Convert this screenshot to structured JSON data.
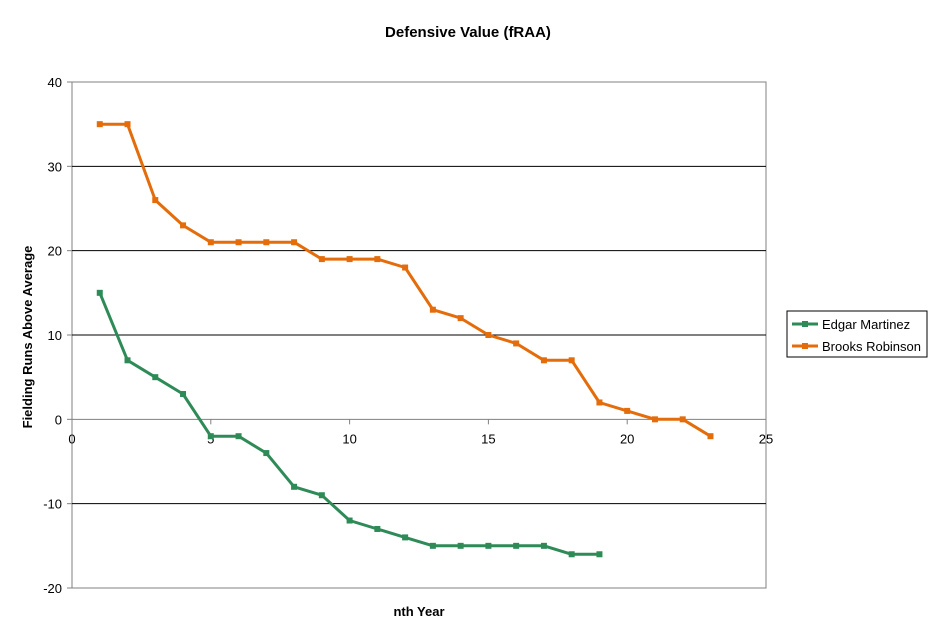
{
  "chart_data": {
    "type": "line",
    "title": "Defensive Value (fRAA)",
    "xlabel": "nth Year",
    "ylabel": "Fielding Runs Above Average",
    "xlim": [
      0,
      25
    ],
    "ylim": [
      -20,
      40
    ],
    "x_ticks": [
      0,
      5,
      10,
      15,
      20,
      25
    ],
    "y_ticks": [
      -20,
      -10,
      0,
      10,
      20,
      30,
      40
    ],
    "grid": "horizontal major gridlines",
    "legend": "right",
    "series": [
      {
        "name": "Edgar Martinez",
        "color": "#2e8b57",
        "x": [
          1,
          2,
          3,
          4,
          5,
          6,
          7,
          8,
          9,
          10,
          11,
          12,
          13,
          14,
          15,
          16,
          17,
          18,
          19
        ],
        "values": [
          15,
          7,
          5,
          3,
          -2,
          -2,
          -4,
          -8,
          -9,
          -12,
          -13,
          -14,
          -15,
          -15,
          -15,
          -15,
          -15,
          -16,
          -16
        ]
      },
      {
        "name": "Brooks Robinson",
        "color": "#e46c0a",
        "x": [
          1,
          2,
          3,
          4,
          5,
          6,
          7,
          8,
          9,
          10,
          11,
          12,
          13,
          14,
          15,
          16,
          17,
          18,
          19,
          20,
          21,
          22,
          23
        ],
        "values": [
          35,
          35,
          26,
          23,
          21,
          21,
          21,
          21,
          19,
          19,
          19,
          18,
          13,
          12,
          10,
          9,
          7,
          7,
          2,
          1,
          0,
          0,
          -2
        ]
      }
    ]
  }
}
